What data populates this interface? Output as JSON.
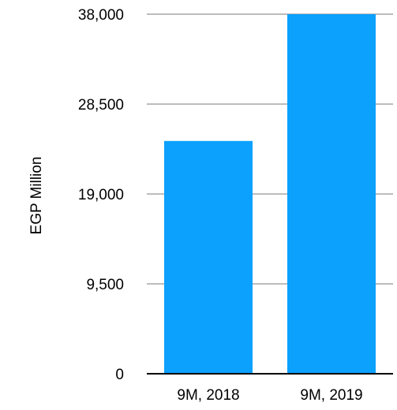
{
  "chart_data": {
    "type": "bar",
    "title": "",
    "xlabel": "",
    "ylabel": "EGP Million",
    "categories": [
      "9M, 2018",
      "9M, 2019"
    ],
    "series": [
      {
        "values": [
          24600,
          38000
        ]
      }
    ],
    "ylim": [
      0,
      38000
    ],
    "yticks": [
      0,
      9500,
      19000,
      28500,
      38000
    ],
    "ytick_labels": [
      "0",
      "9,500",
      "19,000",
      "28,500",
      "38,000"
    ],
    "grid": true,
    "legend": "none",
    "colors": {
      "bar": "#0ba1fd",
      "grid": "#a6a6a6",
      "axis": "#000000",
      "text": "#000000"
    }
  }
}
